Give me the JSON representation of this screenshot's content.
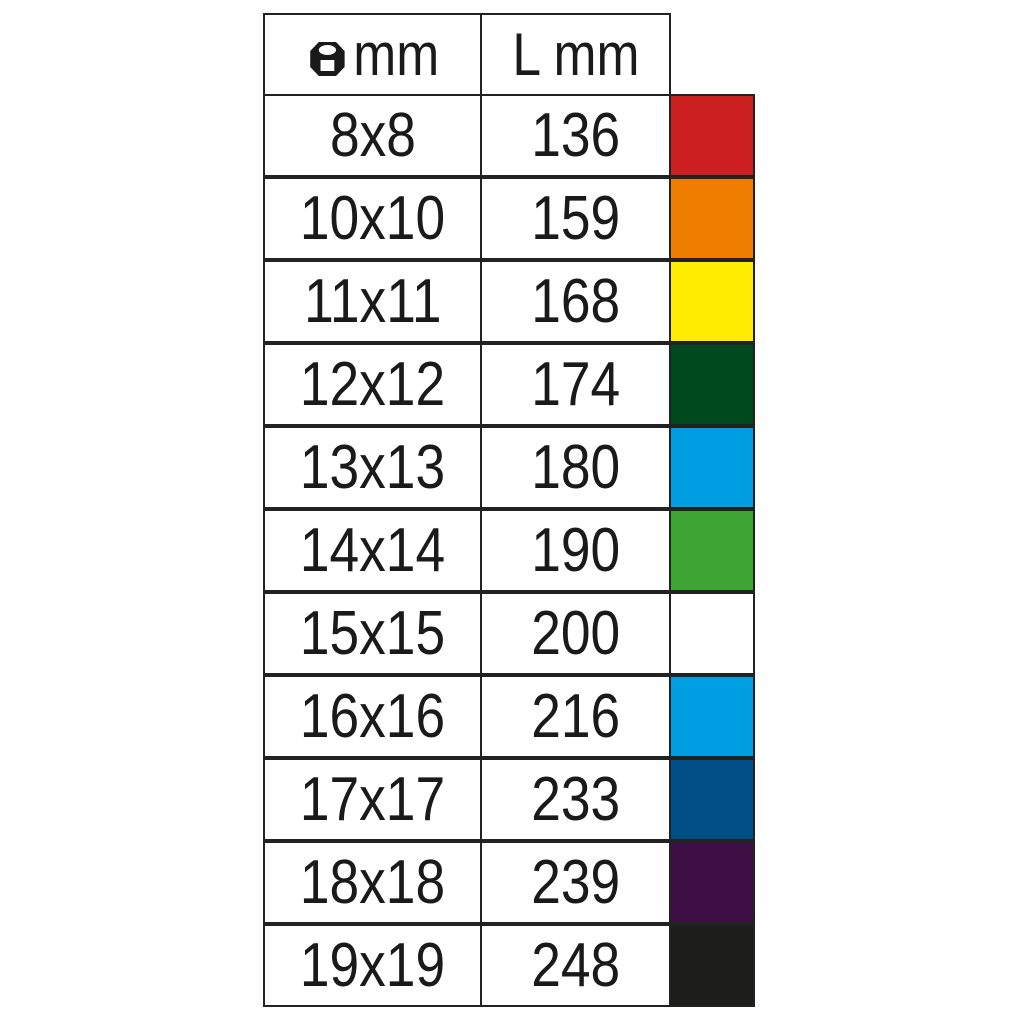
{
  "header": {
    "size_icon": "hex-nut-icon",
    "size_label": "mm",
    "length_label": "L mm"
  },
  "rows": [
    {
      "size": "8x8",
      "length": "136",
      "color": "#cc1f1f"
    },
    {
      "size": "10x10",
      "length": "159",
      "color": "#ef7d00"
    },
    {
      "size": "11x11",
      "length": "168",
      "color": "#ffec00"
    },
    {
      "size": "12x12",
      "length": "174",
      "color": "#00491e"
    },
    {
      "size": "13x13",
      "length": "180",
      "color": "#009fe3"
    },
    {
      "size": "14x14",
      "length": "190",
      "color": "#3ea535"
    },
    {
      "size": "15x15",
      "length": "200",
      "color": "#ffffff"
    },
    {
      "size": "16x16",
      "length": "216",
      "color": "#009fe3"
    },
    {
      "size": "17x17",
      "length": "233",
      "color": "#004f86"
    },
    {
      "size": "18x18",
      "length": "239",
      "color": "#3d0f45"
    },
    {
      "size": "19x19",
      "length": "248",
      "color": "#1d1d1b"
    }
  ]
}
